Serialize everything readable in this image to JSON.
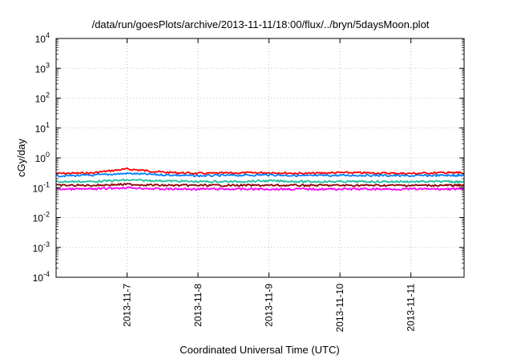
{
  "chart_data": {
    "type": "line",
    "title": "/data/run/goesPlots/archive/2013-11-11/18:00/flux/../bryn/5daysMoon.plot",
    "xlabel": "Coordinated Universal Time (UTC)",
    "ylabel": "cGy/day",
    "yscale": "log",
    "ylim": [
      0.0001,
      10000
    ],
    "xlim": [
      "2013-11-06 00:00",
      "2013-11-11 18:00"
    ],
    "x_ticks": [
      "2013-11-7",
      "2013-11-8",
      "2013-11-9",
      "2013-11-10",
      "2013-11-11"
    ],
    "y_ticks": [
      {
        "base": "10",
        "exp": "4",
        "value": 10000
      },
      {
        "base": "10",
        "exp": "3",
        "value": 1000
      },
      {
        "base": "10",
        "exp": "2",
        "value": 100
      },
      {
        "base": "10",
        "exp": "1",
        "value": 10
      },
      {
        "base": "10",
        "exp": "0",
        "value": 1
      },
      {
        "base": "10",
        "exp": "-1",
        "value": 0.1
      },
      {
        "base": "10",
        "exp": "-2",
        "value": 0.01
      },
      {
        "base": "10",
        "exp": "-3",
        "value": 0.001
      },
      {
        "base": "10",
        "exp": "-4",
        "value": 0.0001
      }
    ],
    "grid": true,
    "series": [
      {
        "color": "#ff0000",
        "x": [
          "2013-11-06 00:00",
          "2013-11-06 12:00",
          "2013-11-07 00:00",
          "2013-11-07 12:00",
          "2013-11-08 00:00",
          "2013-11-08 12:00",
          "2013-11-09 00:00",
          "2013-11-09 12:00",
          "2013-11-10 00:00",
          "2013-11-10 12:00",
          "2013-11-11 00:00",
          "2013-11-11 12:00",
          "2013-11-11 18:00"
        ],
        "values": [
          0.3,
          0.31,
          0.42,
          0.33,
          0.3,
          0.31,
          0.32,
          0.3,
          0.32,
          0.31,
          0.3,
          0.32,
          0.31
        ]
      },
      {
        "color": "#0080ff",
        "x": [
          "2013-11-06 00:00",
          "2013-11-06 12:00",
          "2013-11-07 00:00",
          "2013-11-07 12:00",
          "2013-11-08 00:00",
          "2013-11-08 12:00",
          "2013-11-09 00:00",
          "2013-11-09 12:00",
          "2013-11-10 00:00",
          "2013-11-10 12:00",
          "2013-11-11 00:00",
          "2013-11-11 12:00",
          "2013-11-11 18:00"
        ],
        "values": [
          0.25,
          0.26,
          0.3,
          0.27,
          0.25,
          0.26,
          0.27,
          0.25,
          0.26,
          0.26,
          0.25,
          0.26,
          0.26
        ]
      },
      {
        "color": "#20c0a0",
        "x": [
          "2013-11-06 00:00",
          "2013-11-06 12:00",
          "2013-11-07 00:00",
          "2013-11-07 12:00",
          "2013-11-08 00:00",
          "2013-11-08 12:00",
          "2013-11-09 00:00",
          "2013-11-09 12:00",
          "2013-11-10 00:00",
          "2013-11-10 12:00",
          "2013-11-11 00:00",
          "2013-11-11 12:00",
          "2013-11-11 18:00"
        ],
        "values": [
          0.16,
          0.16,
          0.18,
          0.17,
          0.16,
          0.16,
          0.17,
          0.16,
          0.16,
          0.16,
          0.16,
          0.16,
          0.16
        ]
      },
      {
        "color": "#8b0000",
        "x": [
          "2013-11-06 00:00",
          "2013-11-06 12:00",
          "2013-11-07 00:00",
          "2013-11-07 12:00",
          "2013-11-08 00:00",
          "2013-11-08 12:00",
          "2013-11-09 00:00",
          "2013-11-09 12:00",
          "2013-11-10 00:00",
          "2013-11-10 12:00",
          "2013-11-11 00:00",
          "2013-11-11 12:00",
          "2013-11-11 18:00"
        ],
        "values": [
          0.12,
          0.12,
          0.13,
          0.12,
          0.12,
          0.12,
          0.12,
          0.12,
          0.12,
          0.12,
          0.12,
          0.12,
          0.12
        ]
      },
      {
        "color": "#ff00ff",
        "x": [
          "2013-11-06 00:00",
          "2013-11-06 12:00",
          "2013-11-07 00:00",
          "2013-11-07 12:00",
          "2013-11-08 00:00",
          "2013-11-08 12:00",
          "2013-11-09 00:00",
          "2013-11-09 12:00",
          "2013-11-10 00:00",
          "2013-11-10 12:00",
          "2013-11-11 00:00",
          "2013-11-11 12:00",
          "2013-11-11 18:00"
        ],
        "values": [
          0.09,
          0.09,
          0.1,
          0.09,
          0.09,
          0.09,
          0.09,
          0.09,
          0.09,
          0.09,
          0.09,
          0.09,
          0.09
        ]
      }
    ]
  }
}
